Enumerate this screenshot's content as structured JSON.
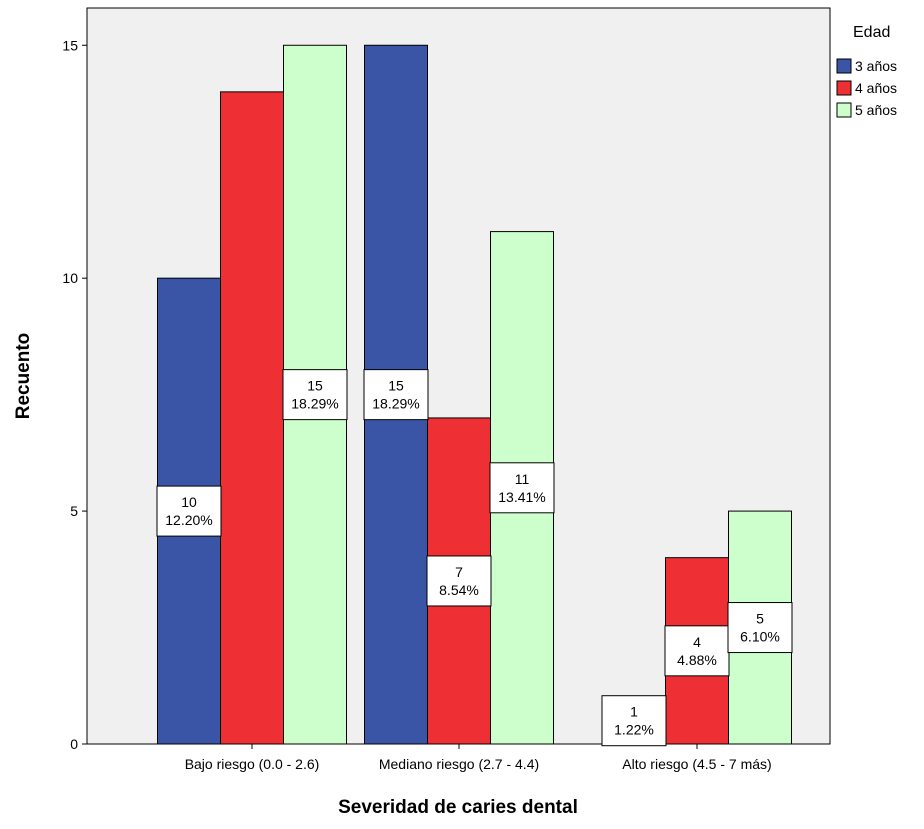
{
  "chart_data": {
    "type": "bar",
    "xlabel": "Severidad de caries dental",
    "ylabel": "Recuento",
    "ylim": [
      0,
      15.8
    ],
    "yticks": [
      0,
      5,
      10,
      15
    ],
    "grid": false,
    "legend_title": "Edad",
    "legend_position": "right",
    "categories": [
      "Bajo riesgo (0.0 - 2.6)",
      "Mediano riesgo (2.7 - 4.4)",
      "Alto riesgo (4.5 - 7 más)"
    ],
    "series": [
      {
        "name": "3 años",
        "color": "#3a55a5",
        "values": [
          10,
          15,
          1
        ],
        "labels": [
          [
            "10",
            "12.20%"
          ],
          [
            "15",
            "18.29%"
          ],
          [
            "1",
            "1.22%"
          ]
        ]
      },
      {
        "name": "4 años",
        "color": "#ee3035",
        "values": [
          14,
          7,
          4
        ],
        "labels": [
          null,
          [
            "7",
            "8.54%"
          ],
          [
            "4",
            "4.88%"
          ]
        ]
      },
      {
        "name": "5 años",
        "color": "#ccffcc",
        "values": [
          15,
          11,
          5
        ],
        "labels": [
          [
            "15",
            "18.29%"
          ],
          [
            "11",
            "13.41%"
          ],
          [
            "5",
            "6.10%"
          ]
        ]
      }
    ]
  }
}
